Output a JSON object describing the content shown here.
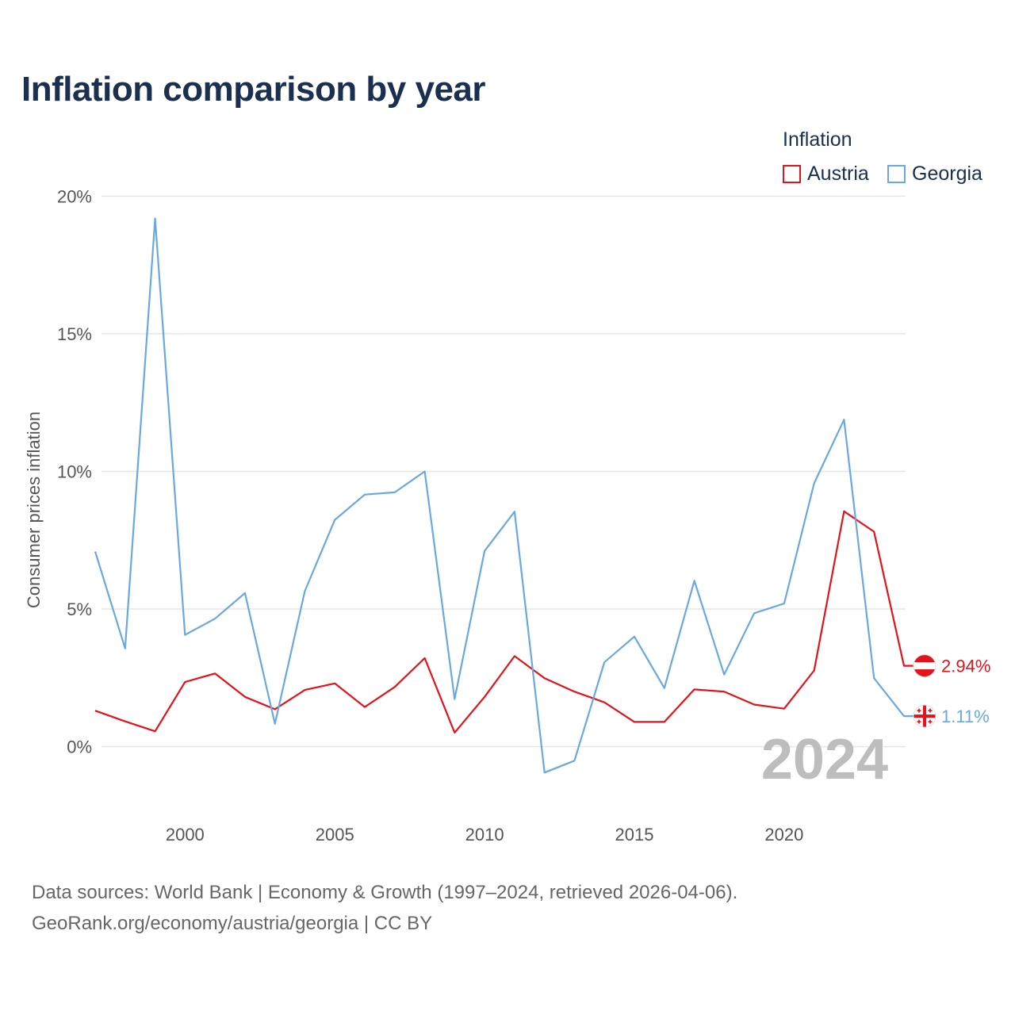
{
  "title": "Inflation comparison by year",
  "legend": {
    "title": "Inflation",
    "items": [
      {
        "label": "Austria",
        "color": "#e3121b"
      },
      {
        "label": "Georgia",
        "color": "#6aa8e0"
      }
    ]
  },
  "chart_data": {
    "type": "line",
    "title": "Inflation comparison by year",
    "xlabel": "",
    "ylabel": "Consumer prices inflation",
    "xlim": [
      1997,
      2024
    ],
    "ylim": [
      -2.2,
      20.5
    ],
    "x_ticks": [
      2000,
      2005,
      2010,
      2015,
      2020
    ],
    "y_ticks": [
      {
        "value": 0,
        "label": "0%"
      },
      {
        "value": 5,
        "label": "5%"
      },
      {
        "value": 10,
        "label": "10%"
      },
      {
        "value": 15,
        "label": "15%"
      },
      {
        "value": 20,
        "label": "20%"
      }
    ],
    "grid": true,
    "x": [
      1997,
      1998,
      1999,
      2000,
      2001,
      2002,
      2003,
      2004,
      2005,
      2006,
      2007,
      2008,
      2009,
      2010,
      2011,
      2012,
      2013,
      2014,
      2015,
      2016,
      2017,
      2018,
      2019,
      2020,
      2021,
      2022,
      2023,
      2024
    ],
    "series": [
      {
        "name": "Austria",
        "color": "#e3121b",
        "values": [
          1.31,
          0.92,
          0.56,
          2.35,
          2.66,
          1.81,
          1.36,
          2.06,
          2.3,
          1.44,
          2.17,
          3.22,
          0.51,
          1.81,
          3.29,
          2.49,
          2.0,
          1.61,
          0.9,
          0.9,
          2.08,
          2.0,
          1.53,
          1.38,
          2.77,
          8.55,
          7.81,
          2.94
        ],
        "end_label": "2.94%"
      },
      {
        "name": "Georgia",
        "color": "#6aa8e0",
        "values": [
          7.09,
          3.57,
          19.19,
          4.06,
          4.65,
          5.58,
          0.83,
          5.65,
          8.24,
          9.16,
          9.24,
          10.0,
          1.73,
          7.11,
          8.54,
          -0.94,
          -0.51,
          3.07,
          4.0,
          2.13,
          6.03,
          2.62,
          4.85,
          5.2,
          9.57,
          11.88,
          2.49,
          1.11
        ],
        "end_label": "1.11%"
      }
    ],
    "watermark_year": "2024"
  },
  "footer": {
    "line1": "Data sources: World Bank | Economy & Growth (1997–2024, retrieved 2026-04-06).",
    "line2": "GeoRank.org/economy/austria/georgia | CC BY"
  },
  "icons": {
    "austria": "austria-flag-icon",
    "georgia": "georgia-flag-icon"
  }
}
